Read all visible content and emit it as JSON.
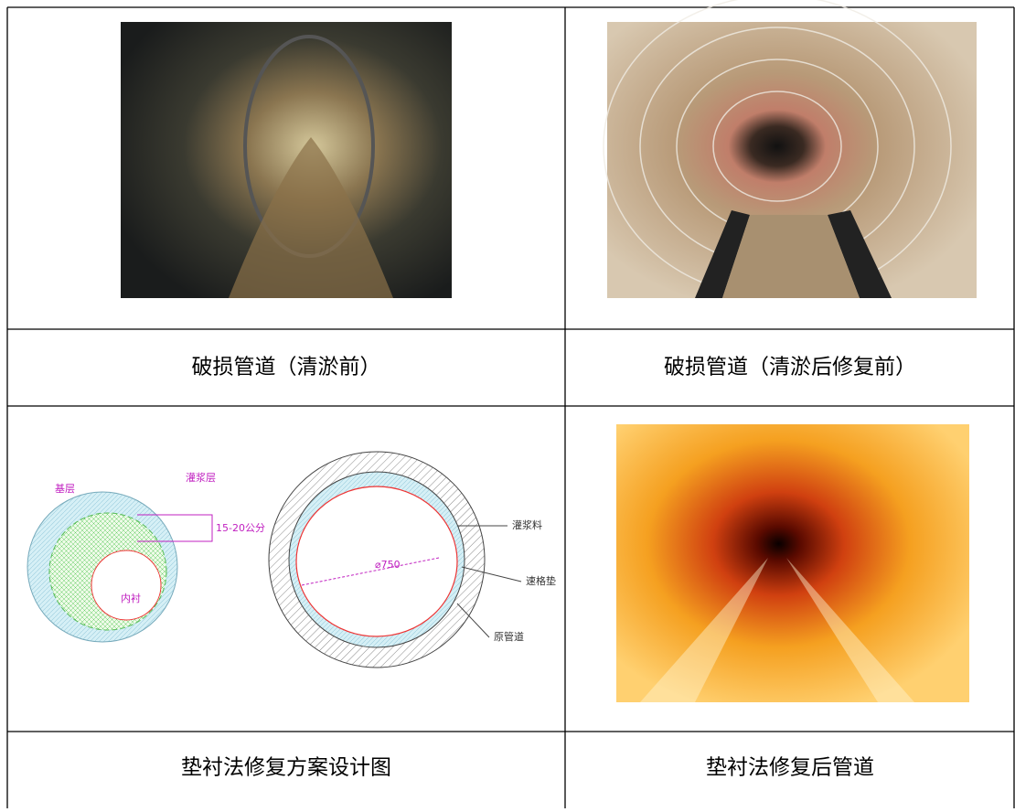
{
  "table": {
    "rows": [
      [
        "破损管道（清淤前）",
        "破损管道（清淤后修复前）"
      ],
      [
        "垫衬法修复方案设计图",
        "垫衬法修复后管道"
      ]
    ]
  },
  "diagram": {
    "left": {
      "base_layer": "基层",
      "grout_layer": "灌浆层",
      "thickness": "15-20公分",
      "liner": "内衬"
    },
    "right": {
      "grout": "灌浆料",
      "spacer": "速格垫",
      "pipe": "原管道",
      "diameter": "⌀750"
    }
  }
}
